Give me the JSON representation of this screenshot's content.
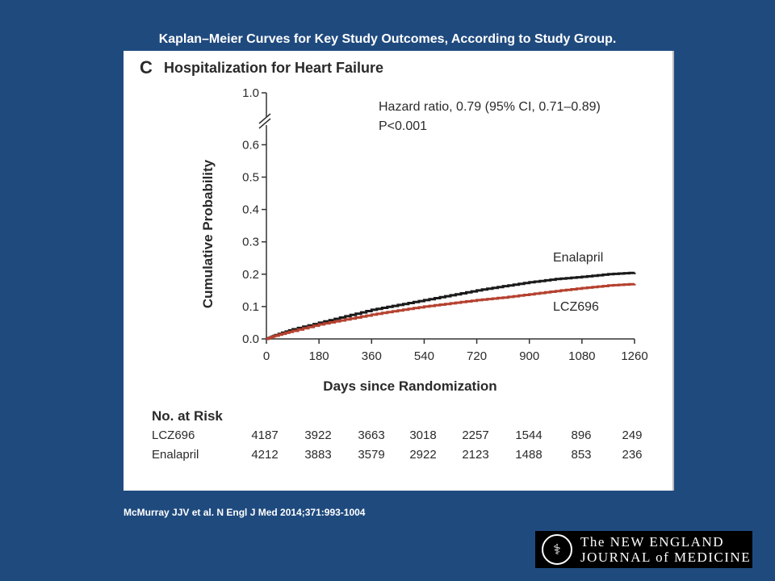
{
  "slide_title": "Kaplan–Meier Curves for Key Study Outcomes, According to Study Group.",
  "citation": "McMurray JJV et al. N Engl J Med 2014;371:993-1004",
  "logo": {
    "line1": "The NEW ENGLAND",
    "line2": "JOURNAL of MEDICINE",
    "icon": "nejm-seal-icon"
  },
  "colors": {
    "background": "#1f4a7e",
    "enalapril": "#1a1a1a",
    "lcz696": "#b5412f"
  },
  "chart_data": {
    "type": "line",
    "panel_letter": "C",
    "title": "Hospitalization for Heart Failure",
    "xlabel": "Days since Randomization",
    "ylabel": "Cumulative Probability",
    "xlim": [
      0,
      1260
    ],
    "ylim": [
      0,
      0.65
    ],
    "axis_break": true,
    "x_ticks": [
      0,
      180,
      360,
      540,
      720,
      900,
      1080,
      1260
    ],
    "y_ticks": [
      0.0,
      0.1,
      0.2,
      0.3,
      0.4,
      0.5,
      0.6
    ],
    "y_tick_labels": [
      "0.0",
      "0.1",
      "0.2",
      "0.3",
      "0.4",
      "0.5",
      "0.6"
    ],
    "y_top_label": "1.0",
    "annotation": {
      "line1": "Hazard ratio, 0.79 (95% CI, 0.71–0.89)",
      "line2": "P<0.001"
    },
    "series": [
      {
        "name": "Enalapril",
        "color": "#1a1a1a",
        "x": [
          0,
          30,
          90,
          180,
          270,
          360,
          450,
          540,
          630,
          720,
          810,
          900,
          990,
          1080,
          1170,
          1260
        ],
        "y": [
          0,
          0.012,
          0.03,
          0.05,
          0.07,
          0.09,
          0.105,
          0.12,
          0.135,
          0.15,
          0.163,
          0.175,
          0.185,
          0.192,
          0.2,
          0.205
        ]
      },
      {
        "name": "LCZ696",
        "color": "#b5412f",
        "x": [
          0,
          30,
          90,
          180,
          270,
          360,
          450,
          540,
          630,
          720,
          810,
          900,
          990,
          1080,
          1170,
          1260
        ],
        "y": [
          0,
          0.01,
          0.025,
          0.045,
          0.06,
          0.075,
          0.088,
          0.1,
          0.11,
          0.12,
          0.128,
          0.138,
          0.148,
          0.157,
          0.165,
          0.17
        ]
      }
    ],
    "risk_table": {
      "title": "No. at Risk",
      "rows": [
        {
          "label": "LCZ696",
          "values": [
            "4187",
            "3922",
            "3663",
            "3018",
            "2257",
            "1544",
            "896",
            "249"
          ]
        },
        {
          "label": "Enalapril",
          "values": [
            "4212",
            "3883",
            "3579",
            "2922",
            "2123",
            "1488",
            "853",
            "236"
          ]
        }
      ]
    }
  }
}
